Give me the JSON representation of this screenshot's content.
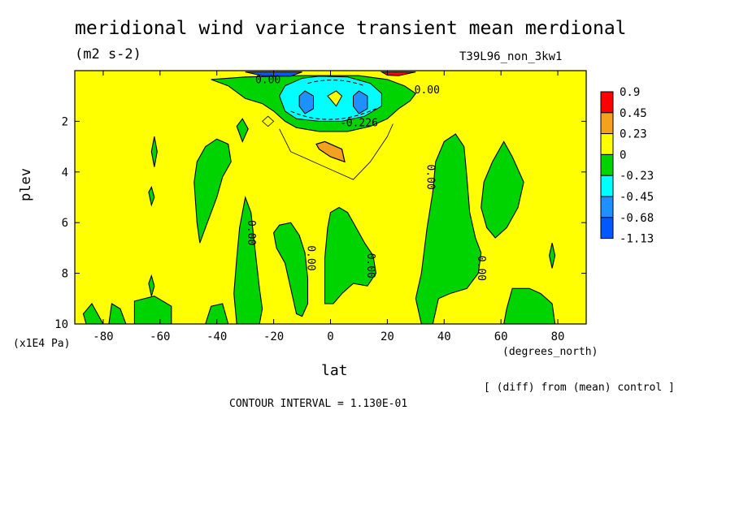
{
  "title": "meridional wind variance transient mean merdional",
  "units": "(m2 s-2)",
  "run_label": "T39L96_non_3kw1",
  "xlabel": "lat",
  "xunit": "(degrees_north)",
  "ylabel": "plev",
  "yunit": "(x1E4 Pa)",
  "diff_note": "[ (diff) from (mean) control ]",
  "contour_interval": "CONTOUR INTERVAL = 1.130E-01",
  "colors": {
    "background": "#ffff00",
    "positive_1": "#f4a11f",
    "positive_2": "#ff0000",
    "negative_1": "#00d400",
    "negative_2": "#00ffff",
    "negative_3": "#1e90ff",
    "negative_4": "#0059ff"
  },
  "chart_data": {
    "type": "heatmap",
    "subtype": "filled contour",
    "x_range": [
      -90,
      90
    ],
    "y_range": [
      10,
      0
    ],
    "x_ticks": [
      -80,
      -60,
      -40,
      -20,
      0,
      20,
      40,
      60,
      80
    ],
    "x_tick_labels": [
      "-80",
      "-60",
      "-40",
      "-20",
      "0",
      "20",
      "40",
      "60",
      "80"
    ],
    "y_ticks": [
      2,
      4,
      6,
      8,
      10
    ],
    "y_tick_labels": [
      "2",
      "4",
      "6",
      "8",
      "10"
    ],
    "legend": {
      "placement": "right",
      "levels": [
        "0.9",
        "0.45",
        "0.23",
        "0",
        "-0.23",
        "-0.45",
        "-0.68",
        "-1.13"
      ],
      "colors": [
        "#ff0000",
        "#f4a11f",
        "#ffff00",
        "#00d400",
        "#00ffff",
        "#1e90ff",
        "#0059ff"
      ]
    },
    "contour_labels": [
      {
        "text": "0.00",
        "lat": -22,
        "plev": 0.5
      },
      {
        "text": "0.00",
        "lat": 34,
        "plev": 0.9
      },
      {
        "text": "-0.226",
        "lat": 10,
        "plev": 2.2
      },
      {
        "text": "0.00",
        "lat": 34,
        "plev": 4.2
      },
      {
        "text": "0.00",
        "lat": -29,
        "plev": 6.4
      },
      {
        "text": "0.00",
        "lat": -8,
        "plev": 7.4
      },
      {
        "text": "0.00",
        "lat": 13,
        "plev": 7.7
      },
      {
        "text": "0.00",
        "lat": 52,
        "plev": 7.8
      }
    ],
    "regions": [
      {
        "sign": "negative",
        "level": 1,
        "lat": [
          -40,
          28
        ],
        "plev": [
          0.1,
          2.4
        ],
        "desc": "negative band near top"
      },
      {
        "sign": "negative",
        "level": 2,
        "lat": [
          -10,
          18
        ],
        "plev": [
          0.2,
          1.9
        ]
      },
      {
        "sign": "negative",
        "level": 3,
        "lat": [
          -10,
          -6
        ],
        "plev": [
          1.0,
          1.5
        ]
      },
      {
        "sign": "negative",
        "level": 3,
        "lat": [
          9,
          13
        ],
        "plev": [
          1.0,
          1.5
        ]
      },
      {
        "sign": "positive",
        "level": 1,
        "lat": [
          -5,
          5
        ],
        "plev": [
          2.8,
          3.6
        ]
      },
      {
        "sign": "negative",
        "level": 1,
        "lat": [
          -48,
          -30
        ],
        "plev": [
          2.7,
          6.8
        ]
      },
      {
        "sign": "negative",
        "level": 1,
        "lat": [
          -21,
          -5
        ],
        "plev": [
          6.1,
          9.7
        ]
      },
      {
        "sign": "negative",
        "level": 1,
        "lat": [
          -2,
          16
        ],
        "plev": [
          5.4,
          9.2
        ]
      },
      {
        "sign": "negative",
        "level": 1,
        "lat": [
          32,
          52
        ],
        "plev": [
          2.5,
          10
        ]
      },
      {
        "sign": "negative",
        "level": 1,
        "lat": [
          52,
          68
        ],
        "plev": [
          2.8,
          7.0
        ]
      },
      {
        "sign": "negative",
        "level": 1,
        "lat": [
          -35,
          -24
        ],
        "plev": [
          5.0,
          10
        ]
      },
      {
        "sign": "negative",
        "level": 1,
        "lat": [
          60,
          78
        ],
        "plev": [
          8.6,
          10
        ]
      },
      {
        "sign": "negative",
        "level": 1,
        "lat": [
          -84,
          -56
        ],
        "plev": [
          8.8,
          10
        ]
      },
      {
        "sign": "negative",
        "level": 1,
        "lat": [
          -44,
          -36
        ],
        "plev": [
          9.2,
          10
        ]
      }
    ]
  }
}
